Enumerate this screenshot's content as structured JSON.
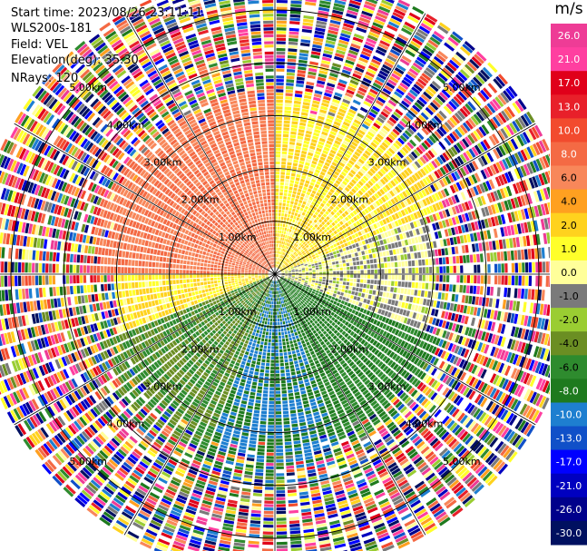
{
  "header": {
    "start_time": "Start time: 2023/08/26 23:11:11",
    "site": "WLS200s-181",
    "field": "Field: VEL",
    "elevation": "Elevation(deg): 35.30",
    "nrays": "NRays: 120"
  },
  "colorbar": {
    "unit": "m/s",
    "ticks": [
      "26.0",
      "21.0",
      "17.0",
      "13.0",
      "10.0",
      "8.0",
      "6.0",
      "4.0",
      "2.0",
      "1.0",
      "0.0",
      "-1.0",
      "-2.0",
      "-4.0",
      "-6.0",
      "-8.0",
      "-10.0",
      "-13.0",
      "-17.0",
      "-21.0",
      "-26.0",
      "-30.0"
    ],
    "colors": [
      "#ee3c96",
      "#ff3fa0",
      "#e0001a",
      "#e8202a",
      "#f24b2e",
      "#f46a44",
      "#f8875a",
      "#ffa020",
      "#ffd21e",
      "#ffff2a",
      "#ffff9a",
      "#7a7a7a",
      "#9acd32",
      "#6b8e23",
      "#2e8b2e",
      "#1e7a1e",
      "#1e7fd0",
      "#1050c8",
      "#0000ff",
      "#0000c0",
      "#00008b",
      "#001060"
    ]
  },
  "chart_data": {
    "type": "heatmap",
    "subtype": "radar PPI (polar)",
    "field": "VEL",
    "units": "m/s",
    "nrays": 120,
    "elevation_deg": 35.3,
    "range_rings_km": [
      1.0,
      2.0,
      3.0,
      4.0,
      5.0
    ],
    "ring_labels": [
      "1.00km",
      "2.00km",
      "3.00km",
      "4.00km",
      "5.00km"
    ],
    "spokes_deg": [
      0,
      30,
      60,
      90,
      120,
      150,
      180,
      210,
      240,
      270,
      300,
      330
    ],
    "max_range_km": 5.7,
    "velocity_range": [
      -30,
      26
    ],
    "approx_field_by_sector": [
      {
        "azimuth_deg": [
          270,
          360
        ],
        "range_km": [
          0,
          3.5
        ],
        "velocity_ms": 8.0
      },
      {
        "azimuth_deg": [
          0,
          70
        ],
        "range_km": [
          0,
          3.5
        ],
        "velocity_ms": 2.0
      },
      {
        "azimuth_deg": [
          70,
          110
        ],
        "range_km": [
          0,
          3.0
        ],
        "velocity_ms": 0.0
      },
      {
        "azimuth_deg": [
          110,
          160
        ],
        "range_km": [
          0,
          3.5
        ],
        "velocity_ms": -6.0
      },
      {
        "azimuth_deg": [
          160,
          200
        ],
        "range_km": [
          0,
          4.0
        ],
        "velocity_ms": -8.0
      },
      {
        "azimuth_deg": [
          200,
          250
        ],
        "range_km": [
          0,
          4.0
        ],
        "velocity_ms": -4.0
      },
      {
        "azimuth_deg": [
          250,
          270
        ],
        "range_km": [
          0,
          3.0
        ],
        "velocity_ms": 2.0
      }
    ],
    "outer_noise_range_km": [
      3.5,
      5.7
    ]
  }
}
